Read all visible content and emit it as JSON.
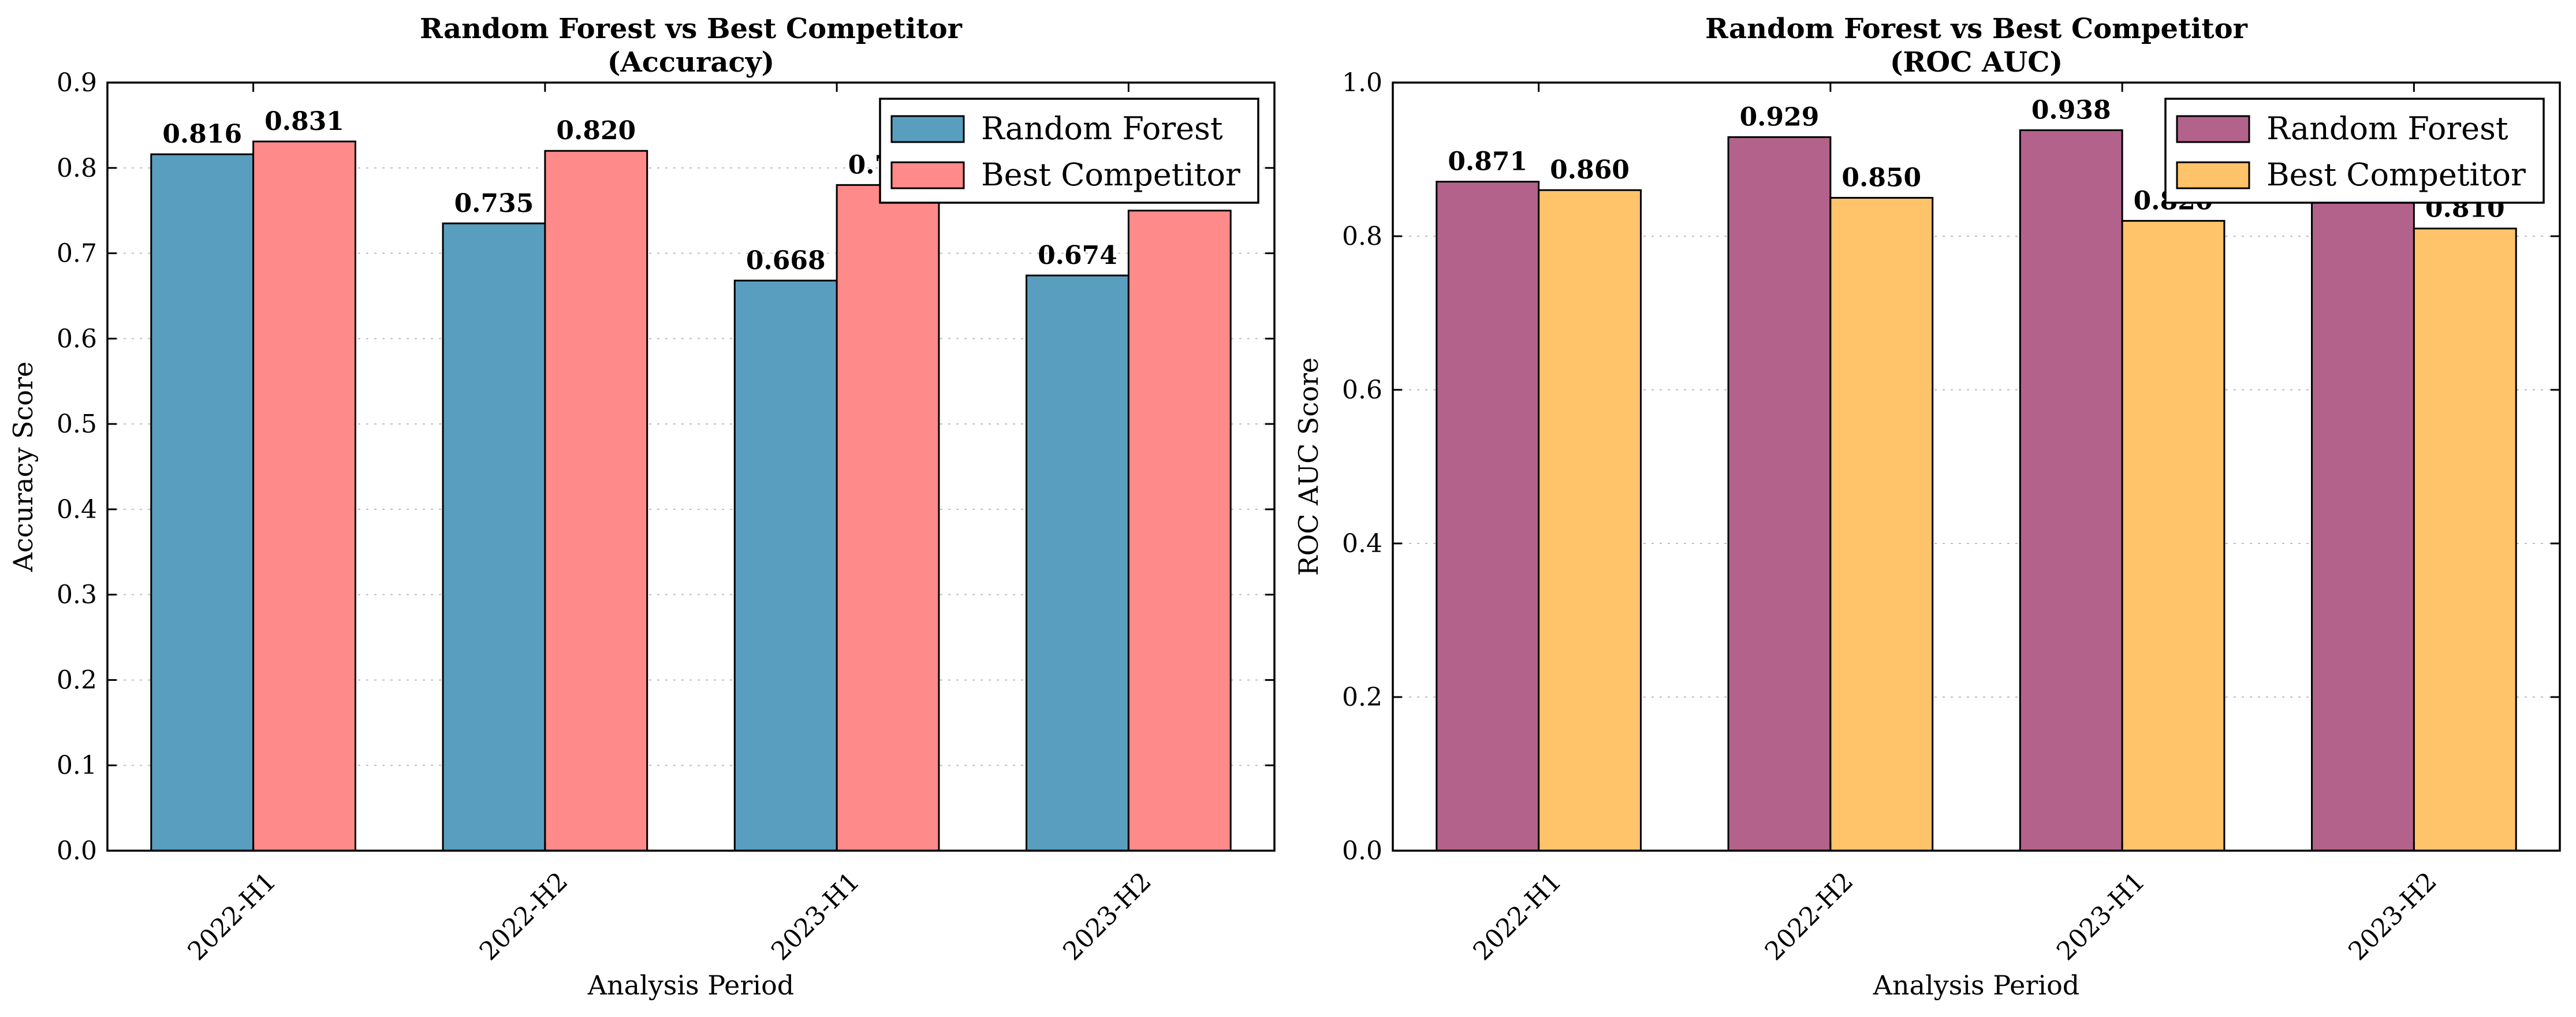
{
  "chart_data": [
    {
      "type": "bar",
      "title": "Random Forest vs Best Competitor",
      "subtitle": "(Accuracy)",
      "xlabel": "Analysis Period",
      "ylabel": "Accuracy Score",
      "categories": [
        "2022-H1",
        "2022-H2",
        "2023-H1",
        "2023-H2"
      ],
      "ylim": [
        0,
        0.9
      ],
      "yticks": [
        0.0,
        0.1,
        0.2,
        0.3,
        0.4,
        0.5,
        0.6,
        0.7,
        0.8,
        0.9
      ],
      "ytick_labels": [
        "0.0",
        "0.1",
        "0.2",
        "0.3",
        "0.4",
        "0.5",
        "0.6",
        "0.7",
        "0.8",
        "0.9"
      ],
      "grid": true,
      "legend_position": "top-right",
      "series": [
        {
          "name": "Random Forest",
          "color": "#599ebf",
          "values": [
            0.816,
            0.735,
            0.668,
            0.674
          ],
          "labels": [
            "0.816",
            "0.735",
            "0.668",
            "0.674"
          ]
        },
        {
          "name": "Best Competitor",
          "color": "#ff8a8a",
          "values": [
            0.831,
            0.82,
            0.78,
            0.75
          ],
          "labels": [
            "0.831",
            "0.820",
            "0.780",
            "0.750"
          ]
        }
      ]
    },
    {
      "type": "bar",
      "title": "Random Forest vs Best Competitor",
      "subtitle": "(ROC AUC)",
      "xlabel": "Analysis Period",
      "ylabel": "ROC AUC Score",
      "categories": [
        "2022-H1",
        "2022-H2",
        "2023-H1",
        "2023-H2"
      ],
      "ylim": [
        0,
        1.0
      ],
      "yticks": [
        0.0,
        0.2,
        0.4,
        0.6,
        0.8,
        1.0
      ],
      "ytick_labels": [
        "0.0",
        "0.2",
        "0.4",
        "0.6",
        "0.8",
        "1.0"
      ],
      "grid": true,
      "legend_position": "top-right",
      "series": [
        {
          "name": "Random Forest",
          "color": "#b2628b",
          "values": [
            0.871,
            0.929,
            0.938,
            0.92
          ],
          "labels": [
            "0.871",
            "0.929",
            "0.938",
            "0.920"
          ]
        },
        {
          "name": "Best Competitor",
          "color": "#ffc369",
          "values": [
            0.86,
            0.85,
            0.82,
            0.81
          ],
          "labels": [
            "0.860",
            "0.850",
            "0.820",
            "0.810"
          ]
        }
      ]
    }
  ]
}
